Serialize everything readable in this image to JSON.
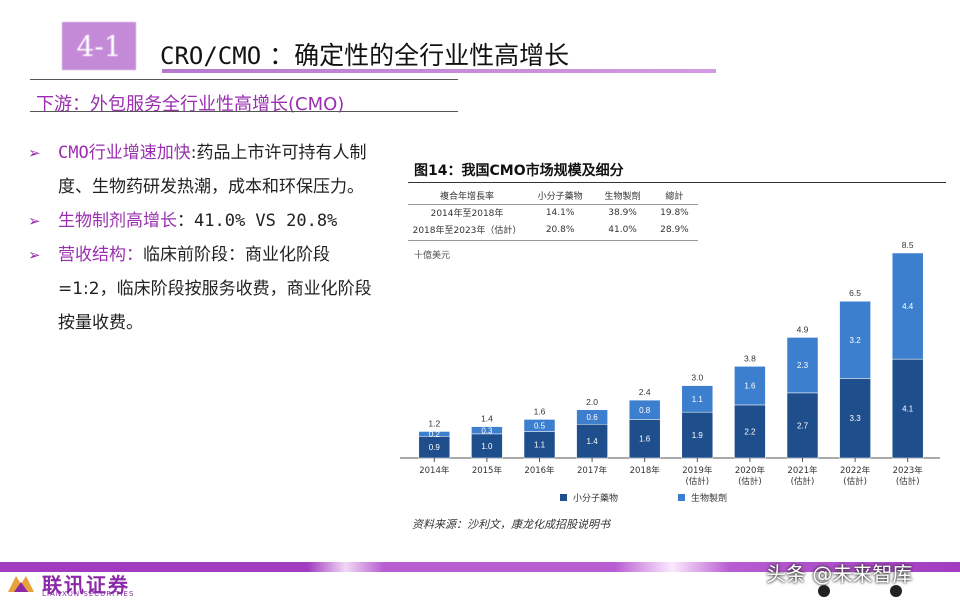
{
  "slide": {
    "section_tag": "4-1",
    "title_en": "CRO/CMO",
    "title_cn": " ：确定性的全行业性高增长",
    "subtitle": "下游：外包服务全行业性高增长(CMO)"
  },
  "bullets": [
    {
      "marker": "➢",
      "highlight": "CMO行业增速加快",
      "text": ":药品上市许可持有人制度、生物药研发热潮，成本和环保压力。"
    },
    {
      "marker": "➢",
      "highlight": "生物制剂高增长",
      "text": "：41.0% VS 20.8%"
    },
    {
      "marker": "➢",
      "highlight": "营收结构：",
      "text": "临床前阶段：商业化阶段=1:2，临床阶段按服务收费，商业化阶段按量收费。"
    }
  ],
  "figure": {
    "title": "图14：我国CMO市场规模及细分",
    "table": {
      "headers": [
        "複合年增長率",
        "小分子藥物",
        "生物製劑",
        "總計"
      ],
      "rows": [
        [
          "2014年至2018年",
          "14.1%",
          "38.9%",
          "19.8%"
        ],
        [
          "2018年至2023年（估計）",
          "20.8%",
          "41.0%",
          "28.9%"
        ]
      ]
    },
    "unit": "十億美元",
    "source": "资料来源：沙利文，康龙化成招股说明书"
  },
  "chart_data": {
    "type": "bar",
    "stacked": true,
    "categories": [
      "2014年",
      "2015年",
      "2016年",
      "2017年",
      "2018年",
      "2019年(估計)",
      "2020年(估計)",
      "2021年(估計)",
      "2022年(估計)",
      "2023年(估計)"
    ],
    "category_lines": [
      [
        "2014年"
      ],
      [
        "2015年"
      ],
      [
        "2016年"
      ],
      [
        "2017年"
      ],
      [
        "2018年"
      ],
      [
        "2019年",
        "(估計)"
      ],
      [
        "2020年",
        "(估計)"
      ],
      [
        "2021年",
        "(估計)"
      ],
      [
        "2022年",
        "(估計)"
      ],
      [
        "2023年",
        "(估計)"
      ]
    ],
    "series": [
      {
        "name": "小分子藥物",
        "color": "#1f4e8c",
        "values": [
          0.9,
          1.0,
          1.1,
          1.4,
          1.6,
          1.9,
          2.2,
          2.7,
          3.3,
          4.1
        ],
        "labels": [
          "0.9",
          "1.0",
          "1.1",
          "1.4",
          "1.6",
          "1.9",
          "2.2",
          "2.7",
          "3.3",
          "4.1"
        ]
      },
      {
        "name": "生物製劑",
        "color": "#3d7fcf",
        "values": [
          0.2,
          0.3,
          0.5,
          0.6,
          0.8,
          1.1,
          1.6,
          2.3,
          3.2,
          4.4
        ],
        "labels": [
          "0.2",
          "0.3",
          "0.5",
          "0.6",
          "0.8",
          "1.1",
          "1.6",
          "2.3",
          "3.2",
          "4.4"
        ]
      }
    ],
    "totals": [
      "1.2",
      "1.4",
      "1.6",
      "2.0",
      "2.4",
      "3.0",
      "3.8",
      "4.9",
      "6.5",
      "8.5"
    ],
    "ylim": [
      0,
      8.5
    ],
    "grid": false,
    "legend": "bottom"
  },
  "footer": {
    "logo_cn": "联讯证券",
    "logo_en": "LIANXUN SECURITIES",
    "watermark": "头条 @未来智库"
  }
}
